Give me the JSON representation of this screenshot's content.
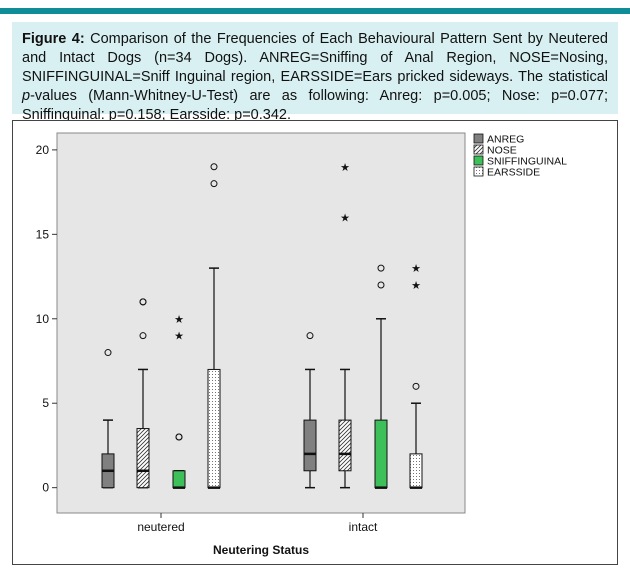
{
  "caption": {
    "label": "Figure 4:",
    "body": " Comparison of the Frequencies of Each Behavioural Pattern Sent by Neutered and Intact Dogs (n=34 Dogs). ANREG=Sniffing of Anal Region, NOSE=Nosing, SNIFFINGUINAL=Sniff Inguinal region, EARSSIDE=Ears pricked sideways. The statistical ",
    "p_italic": "p",
    "tail": "-values (Mann-Whitney-U-Test) are as following: Anreg: p=0.005; Nose: p=0.077; Sniffinguinal: p=0.158; Earsside: p=0.342."
  },
  "colors": {
    "accent_bar": "#0f8e9a",
    "caption_bg": "#d8f0f2",
    "plot_bg": "#e6e6e6",
    "anreg": "#808080",
    "nose": "#ffffff",
    "sniffinguinal": "#3dbf5a",
    "earsside": "#ffffff"
  },
  "chart_data": {
    "type": "boxplot",
    "xlabel": "Neutering Status",
    "ylabel": "",
    "ylim": [
      -1.5,
      21
    ],
    "yticks": [
      0,
      5,
      10,
      15,
      20
    ],
    "categories": [
      "neutered",
      "intact"
    ],
    "legend_position": "top-right",
    "series": [
      {
        "name": "ANREG",
        "fill": "solid-gray",
        "boxes": [
          {
            "group": "neutered",
            "min": 0,
            "q1": 0,
            "median": 1,
            "q3": 2,
            "max": 4,
            "outliers": [
              8
            ],
            "extremes": []
          },
          {
            "group": "intact",
            "min": 0,
            "q1": 1,
            "median": 2,
            "q3": 4,
            "max": 7,
            "outliers": [
              9
            ],
            "extremes": []
          }
        ]
      },
      {
        "name": "NOSE",
        "fill": "hatched",
        "boxes": [
          {
            "group": "neutered",
            "min": 0,
            "q1": 0,
            "median": 1,
            "q3": 3.5,
            "max": 7,
            "outliers": [
              9,
              11,
              11
            ],
            "extremes": []
          },
          {
            "group": "intact",
            "min": 0,
            "q1": 1,
            "median": 2,
            "q3": 4,
            "max": 7,
            "outliers": [],
            "extremes": [
              16,
              19
            ]
          }
        ]
      },
      {
        "name": "SNIFFINGUINAL",
        "fill": "green",
        "boxes": [
          {
            "group": "neutered",
            "min": 0,
            "q1": 0,
            "median": 0,
            "q3": 1,
            "max": 1,
            "outliers": [
              3,
              3
            ],
            "extremes": [
              9,
              10
            ]
          },
          {
            "group": "intact",
            "min": 0,
            "q1": 0,
            "median": 0,
            "q3": 4,
            "max": 10,
            "outliers": [
              12,
              13
            ],
            "extremes": []
          }
        ]
      },
      {
        "name": "EARSSIDE",
        "fill": "dotted",
        "boxes": [
          {
            "group": "neutered",
            "min": 0,
            "q1": 0,
            "median": 0,
            "q3": 7,
            "max": 13,
            "outliers": [
              18,
              19
            ],
            "extremes": []
          },
          {
            "group": "intact",
            "min": 0,
            "q1": 0,
            "median": 0,
            "q3": 2,
            "max": 5,
            "outliers": [
              6
            ],
            "extremes": [
              12,
              13
            ]
          }
        ]
      }
    ]
  }
}
